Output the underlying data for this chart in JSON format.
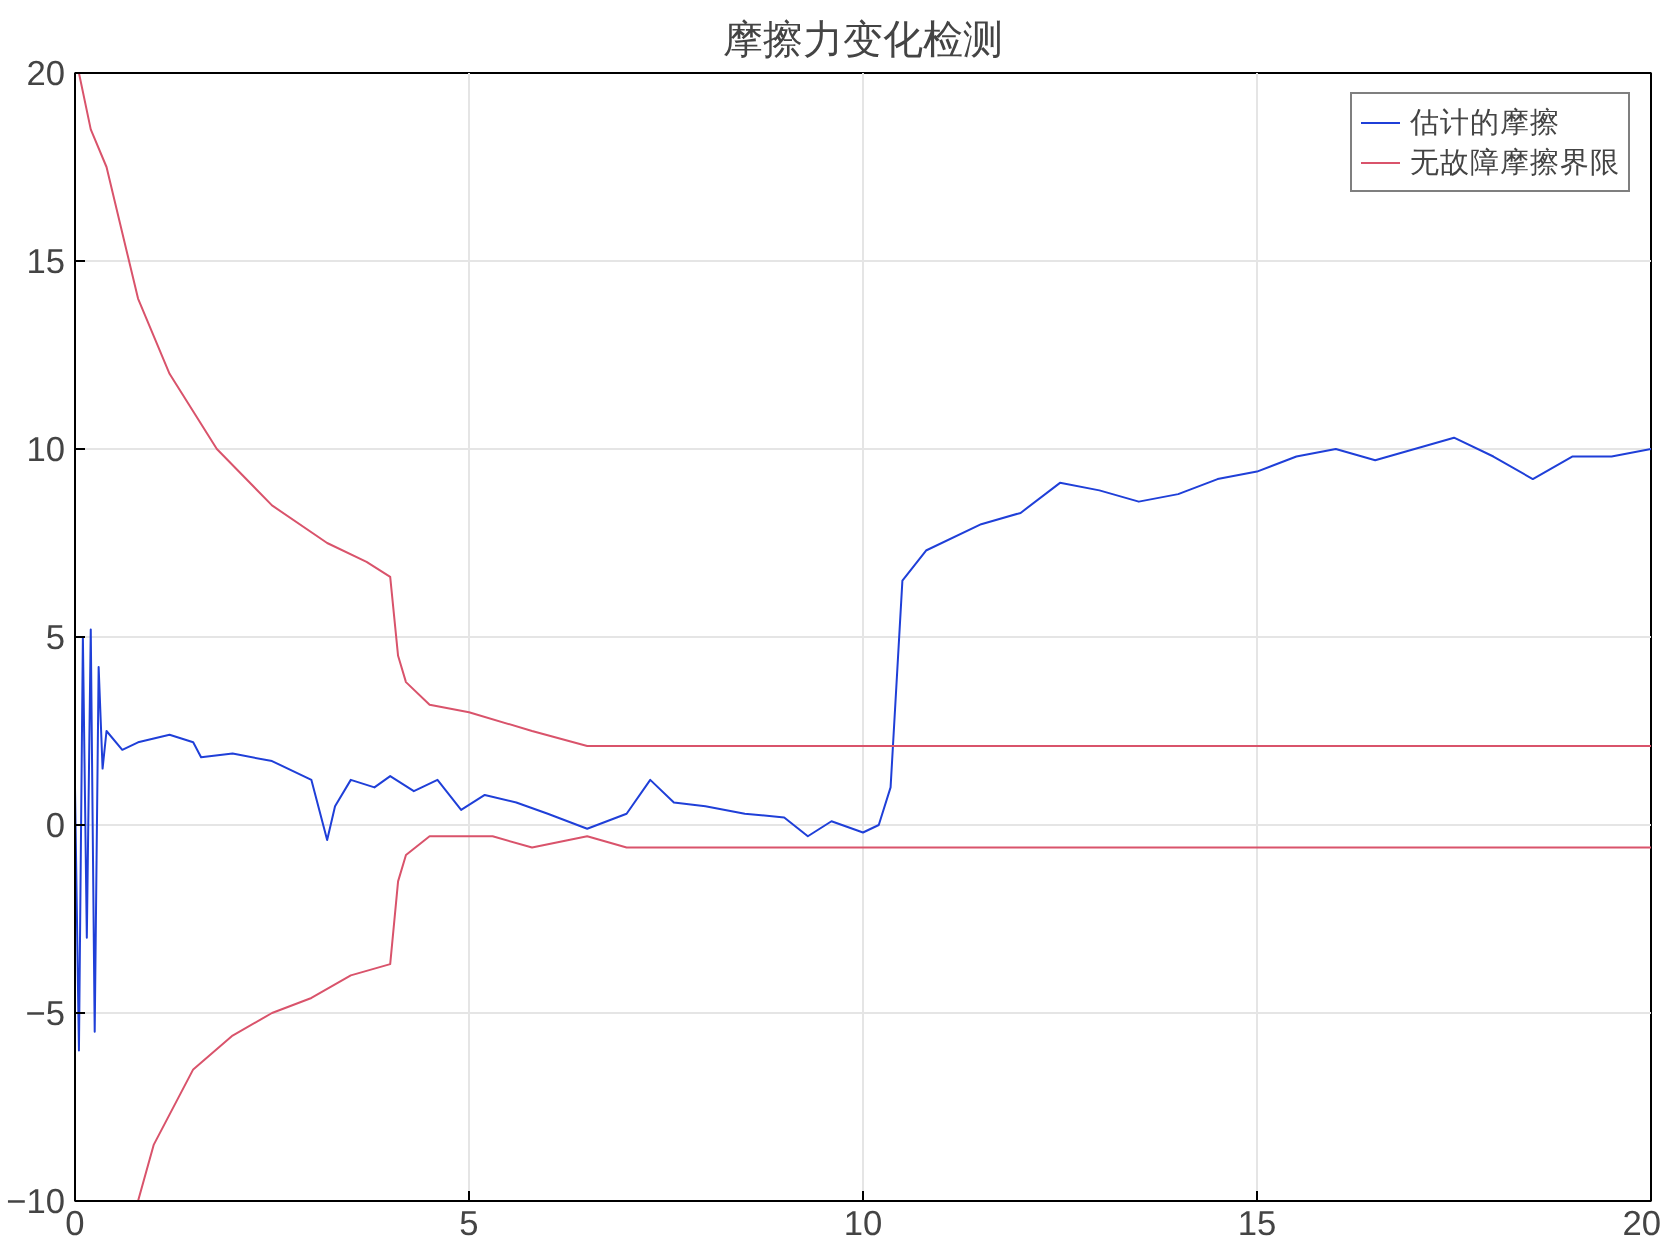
{
  "chart_data": {
    "type": "line",
    "title": "摩擦力变化检测",
    "xlim": [
      0,
      20
    ],
    "ylim": [
      -10,
      20
    ],
    "xticks": [
      0,
      5,
      10,
      15,
      20
    ],
    "yticks": [
      -10,
      -5,
      0,
      5,
      10,
      15,
      20
    ],
    "grid": true,
    "legend": "top right",
    "line_style": "solid",
    "marker": "none",
    "series": [
      {
        "name": "估计的摩擦",
        "color": "#1f3fd8",
        "x": [
          0,
          0.05,
          0.1,
          0.15,
          0.2,
          0.25,
          0.3,
          0.35,
          0.4,
          0.6,
          0.8,
          1.0,
          1.2,
          1.5,
          1.6,
          2.0,
          2.5,
          3.0,
          3.2,
          3.3,
          3.5,
          3.8,
          4.0,
          4.3,
          4.6,
          4.9,
          5.2,
          5.6,
          6.0,
          6.5,
          7.0,
          7.3,
          7.6,
          8.0,
          8.5,
          9.0,
          9.3,
          9.6,
          10.0,
          10.2,
          10.35,
          10.5,
          10.8,
          11.5,
          12,
          12.5,
          13,
          13.5,
          14,
          14.5,
          15,
          15.5,
          16,
          16.5,
          17,
          17.5,
          18,
          18.5,
          19,
          19.5,
          20
        ],
        "values": [
          1,
          -6,
          5,
          -3,
          5.2,
          -5.5,
          4.2,
          1.5,
          2.5,
          2,
          2.2,
          2.3,
          2.4,
          2.2,
          1.8,
          1.9,
          1.7,
          1.2,
          -0.4,
          0.5,
          1.2,
          1.0,
          1.3,
          0.9,
          1.2,
          0.4,
          0.8,
          0.6,
          0.3,
          -0.1,
          0.3,
          1.2,
          0.6,
          0.5,
          0.3,
          0.2,
          -0.3,
          0.1,
          -0.2,
          0,
          1,
          6.5,
          7.3,
          8,
          8.3,
          9.1,
          8.9,
          8.6,
          8.8,
          9.2,
          9.4,
          9.8,
          10,
          9.7,
          10,
          10.3,
          9.8,
          9.2,
          9.8,
          9.8,
          10
        ]
      },
      {
        "name": "无故障摩擦界限",
        "color": "#d9536b",
        "x": [
          0.05,
          0.2,
          0.4,
          0.8,
          1.2,
          1.8,
          2.5,
          3.2,
          3.7,
          4.0,
          4.1,
          4.2,
          4.5,
          5.0,
          5.8,
          6.5,
          20
        ],
        "values": [
          20,
          18.5,
          17.5,
          14,
          12,
          10,
          8.5,
          7.5,
          7,
          6.6,
          4.5,
          3.8,
          3.2,
          3,
          2.5,
          2.1,
          2.1
        ]
      },
      {
        "color": "#d9536b",
        "x": [
          0.8,
          1.0,
          1.5,
          2.0,
          2.5,
          3.0,
          3.5,
          4.0,
          4.1,
          4.2,
          4.5,
          5.0,
          5.3,
          5.8,
          6.5,
          7.0,
          20
        ],
        "values": [
          -10,
          -8.5,
          -6.5,
          -5.6,
          -5,
          -4.6,
          -4,
          -3.7,
          -1.5,
          -0.8,
          -0.3,
          -0.3,
          -0.3,
          -0.6,
          -0.3,
          -0.6,
          -0.6
        ]
      }
    ]
  }
}
